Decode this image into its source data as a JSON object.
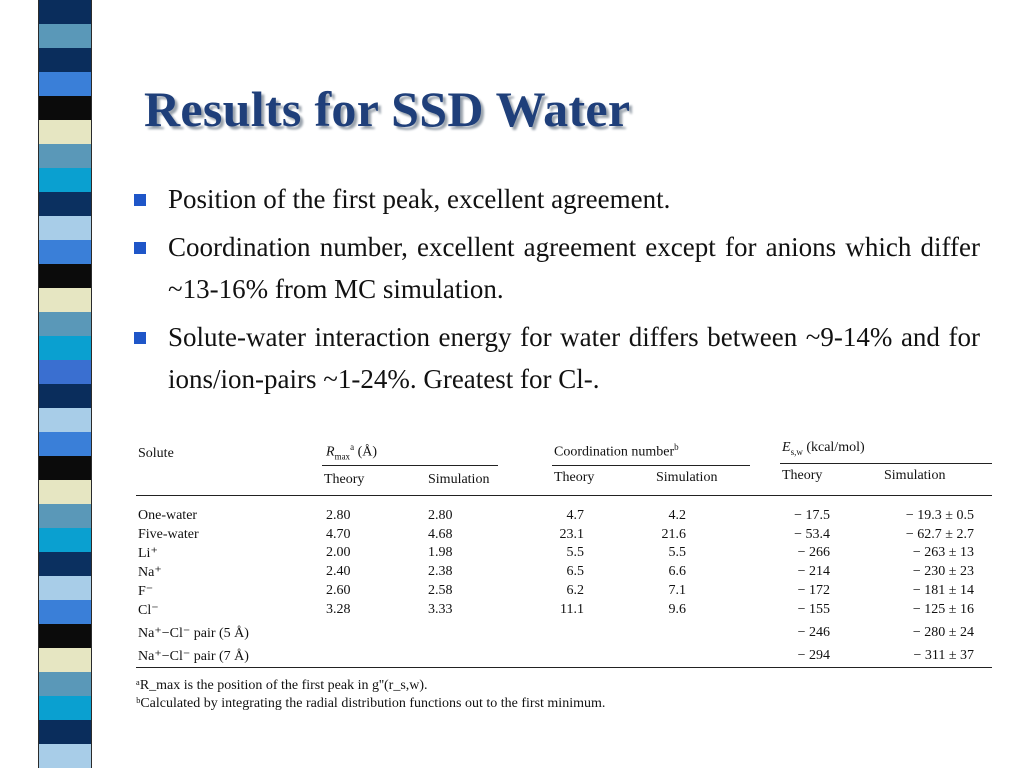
{
  "slide": {
    "title": "Results for SSD Water",
    "bullets": [
      "Position of the first peak, excellent agreement.",
      "Coordination number, excellent agreement except for anions which differ ~13-16% from MC simulation.",
      "Solute-water interaction energy for water differs between ~9-14% and for ions/ion-pairs ~1-24%. Greatest for Cl-."
    ],
    "stripe_colors": [
      "#0a2d5c",
      "#5a98b8",
      "#3a7fd8",
      "#0b0b0b",
      "#e6e6c2",
      "#5a98b8",
      "#0aa0d0",
      "#0b3060",
      "#a8cde8",
      "#3a6fd0"
    ]
  },
  "table": {
    "col_headers": {
      "solute": "Solute",
      "rmax": "R",
      "rmax_sub": "max",
      "rmax_sup": "a",
      "rmax_unit": "(Å)",
      "coord": "Coordination number",
      "coord_sup": "b",
      "energy": "E",
      "energy_sub": "s,w",
      "energy_unit": "(kcal/mol)"
    },
    "sub_headers": {
      "rmax_theory": "Theory",
      "rmax_sim": "Simulation",
      "coord_theory": "Theory",
      "coord_sim": "Simulation",
      "energy_theory": "Theory",
      "energy_sim": "Simulation"
    },
    "rows": [
      {
        "solute": "One-water",
        "r_theory": "2.80",
        "r_sim": "2.80",
        "c_theory": "4.7",
        "c_sim": "4.2",
        "e_theory": "− 17.5",
        "e_sim": "− 19.3 ± 0.5"
      },
      {
        "solute": "Five-water",
        "r_theory": "4.70",
        "r_sim": "4.68",
        "c_theory": "23.1",
        "c_sim": "21.6",
        "e_theory": "− 53.4",
        "e_sim": "− 62.7 ± 2.7"
      },
      {
        "solute": "Li⁺",
        "r_theory": "2.00",
        "r_sim": "1.98",
        "c_theory": "5.5",
        "c_sim": "5.5",
        "e_theory": "− 266",
        "e_sim": "− 263 ± 13"
      },
      {
        "solute": "Na⁺",
        "r_theory": "2.40",
        "r_sim": "2.38",
        "c_theory": "6.5",
        "c_sim": "6.6",
        "e_theory": "− 214",
        "e_sim": "− 230 ± 23"
      },
      {
        "solute": "F⁻",
        "r_theory": "2.60",
        "r_sim": "2.58",
        "c_theory": "6.2",
        "c_sim": "7.1",
        "e_theory": "− 172",
        "e_sim": "− 181 ± 14"
      },
      {
        "solute": "Cl⁻",
        "r_theory": "3.28",
        "r_sim": "3.33",
        "c_theory": "11.1",
        "c_sim": "9.6",
        "e_theory": "− 155",
        "e_sim": "− 125 ± 16"
      },
      {
        "solute": "Na⁺−Cl⁻ pair (5 Å)",
        "r_theory": "",
        "r_sim": "",
        "c_theory": "",
        "c_sim": "",
        "e_theory": "− 246",
        "e_sim": "− 280 ± 24"
      },
      {
        "solute": "Na⁺−Cl⁻ pair (7 Å)",
        "r_theory": "",
        "r_sim": "",
        "c_theory": "",
        "c_sim": "",
        "e_theory": "− 294",
        "e_sim": "− 311 ± 37"
      }
    ],
    "footnotes": [
      "ᵃR_max is the position of the first peak in g''(r_s,w).",
      "ᵇCalculated by integrating the radial distribution functions out to the first minimum."
    ]
  }
}
